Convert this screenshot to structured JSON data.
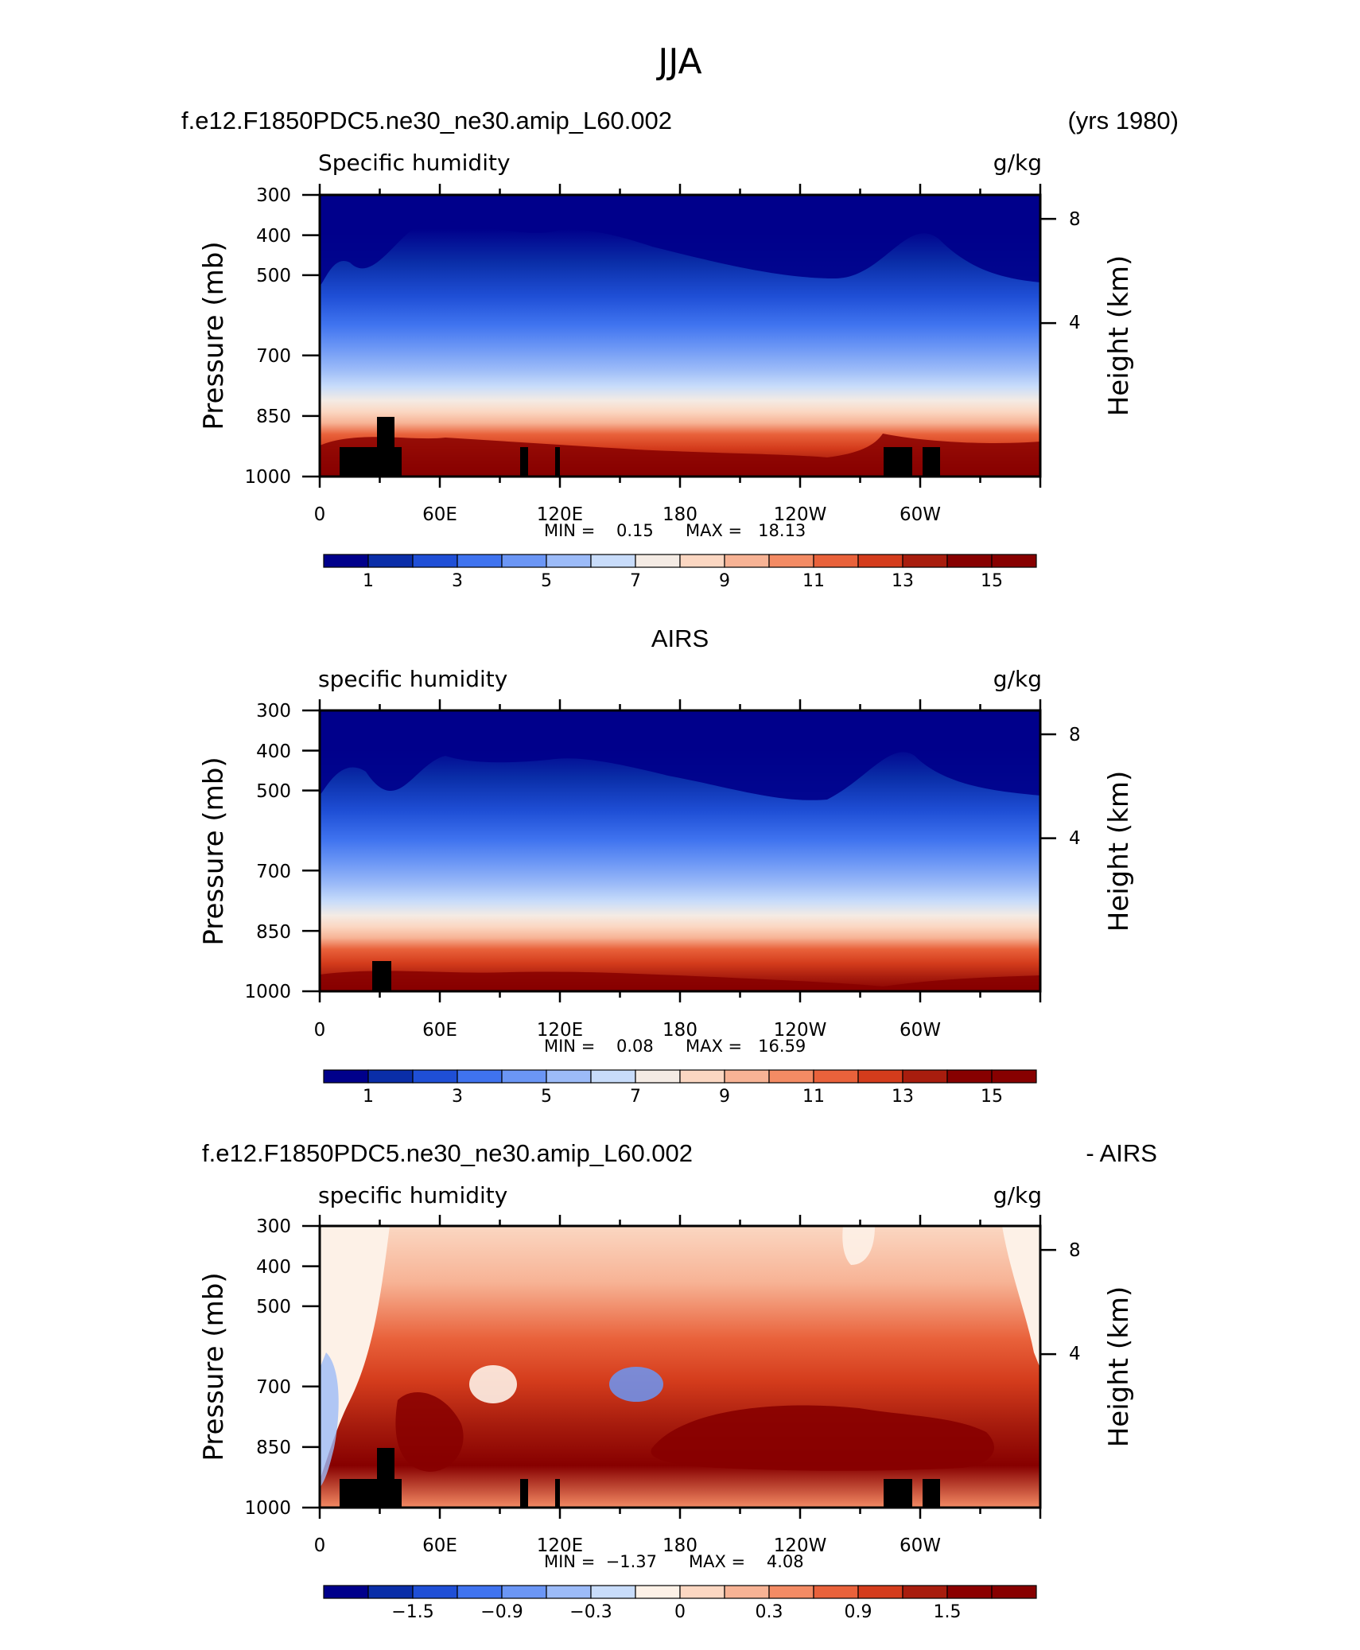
{
  "title": "JJA",
  "colors": {
    "fill_palette": [
      "#00008b",
      "#0a2ea8",
      "#1f4fd6",
      "#3f73ef",
      "#6b96f5",
      "#9cbbf8",
      "#c8dcfa",
      "#f4ebe4",
      "#fbd7c2",
      "#f7b395",
      "#f38b64",
      "#e9623b",
      "#d43c1c",
      "#a81d0e",
      "#870000"
    ],
    "diff_palette": [
      "#00008b",
      "#0a2ea8",
      "#1f4fd6",
      "#3f73ef",
      "#6b96f5",
      "#9cbbf8",
      "#c8dcfa",
      "#fdf1e7",
      "#fbd7c2",
      "#f7b395",
      "#f38b64",
      "#e9623b",
      "#d43c1c",
      "#a81d0e",
      "#8b0000",
      "#870000"
    ],
    "topography": "#000000"
  },
  "chart_data": [
    {
      "type": "heatmap",
      "header_left": "f.e12.F1850PDC5.ne30_ne30.amip_L60.002",
      "header_right": "(yrs 1980)",
      "title": "Specific humidity",
      "units": "g/kg",
      "ylabel": "Pressure (mb)",
      "ylabel_right": "Height (km)",
      "xlim": [
        0,
        360
      ],
      "x_ticks": [
        "0",
        "60E",
        "120E",
        "180",
        "120W",
        "60W"
      ],
      "y_ticks": [
        "300",
        "400",
        "500",
        "700",
        "850",
        "1000"
      ],
      "y_right_ticks": [
        "8",
        "4"
      ],
      "min_text": "MIN =    0.15",
      "max_text": "MAX =   18.13",
      "min": 0.15,
      "max": 18.13,
      "colorbar_labels": [
        "1",
        "3",
        "5",
        "7",
        "9",
        "11",
        "13",
        "15"
      ],
      "colorbar_levels": [
        0,
        1,
        2,
        3,
        4,
        5,
        6,
        7,
        8,
        9,
        10,
        11,
        12,
        13,
        14,
        15,
        16
      ],
      "topography_blocks_lon": [
        [
          10,
          40
        ],
        [
          100,
          104
        ],
        [
          118,
          121
        ],
        [
          282,
          296
        ],
        [
          300,
          308
        ]
      ]
    },
    {
      "type": "heatmap",
      "header_center": "AIRS",
      "title": "specific humidity",
      "units": "g/kg",
      "ylabel": "Pressure (mb)",
      "ylabel_right": "Height (km)",
      "xlim": [
        0,
        360
      ],
      "x_ticks": [
        "0",
        "60E",
        "120E",
        "180",
        "120W",
        "60W"
      ],
      "y_ticks": [
        "300",
        "400",
        "500",
        "700",
        "850",
        "1000"
      ],
      "y_right_ticks": [
        "8",
        "4"
      ],
      "min_text": "MIN =    0.08",
      "max_text": "MAX =   16.59",
      "min": 0.08,
      "max": 16.59,
      "colorbar_labels": [
        "1",
        "3",
        "5",
        "7",
        "9",
        "11",
        "13",
        "15"
      ],
      "topography_blocks_lon": [
        [
          26,
          36
        ]
      ]
    },
    {
      "type": "heatmap",
      "header_left": "f.e12.F1850PDC5.ne30_ne30.amip_L60.002",
      "header_right": "- AIRS",
      "title": "specific humidity",
      "units": "g/kg",
      "ylabel": "Pressure (mb)",
      "ylabel_right": "Height (km)",
      "xlim": [
        0,
        360
      ],
      "x_ticks": [
        "0",
        "60E",
        "120E",
        "180",
        "120W",
        "60W"
      ],
      "y_ticks": [
        "300",
        "400",
        "500",
        "700",
        "850",
        "1000"
      ],
      "y_right_ticks": [
        "8",
        "4"
      ],
      "min_text": "MIN =  −1.37",
      "max_text": "MAX =    4.08",
      "min": -1.37,
      "max": 4.08,
      "colorbar_labels": [
        "−1.5",
        "−0.9",
        "−0.3",
        "0",
        "0.3",
        "0.9",
        "1.5"
      ],
      "topography_blocks_lon": [
        [
          10,
          40
        ],
        [
          100,
          104
        ],
        [
          118,
          121
        ],
        [
          282,
          296
        ],
        [
          300,
          308
        ]
      ]
    }
  ]
}
